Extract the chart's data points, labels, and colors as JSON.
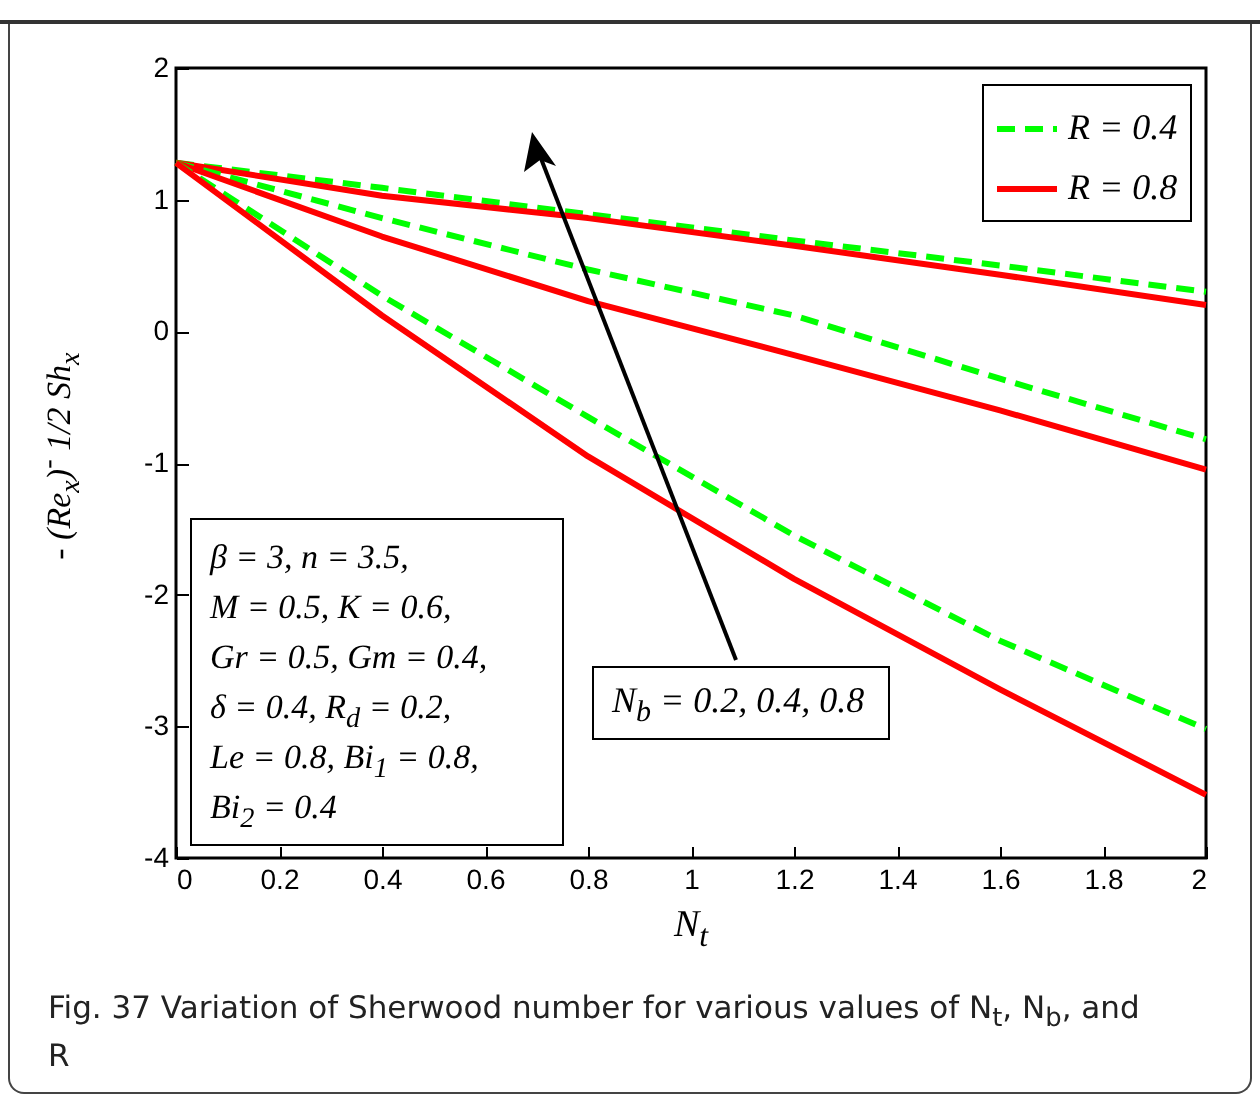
{
  "chart_data": {
    "type": "line",
    "xlabel": "N$_{t}$",
    "ylabel": "- (Re$_{x}$)$^{-}$ 1/2 Sh$_{x}$",
    "x": [
      0,
      0.4,
      0.8,
      1.2,
      1.6,
      2
    ],
    "xlim": [
      0,
      2
    ],
    "xticks": [
      0,
      0.2,
      0.4,
      0.6,
      0.8,
      1,
      1.2,
      1.4,
      1.6,
      1.8,
      2
    ],
    "ylim": [
      -4,
      2
    ],
    "yticks": [
      -4,
      -3,
      -2,
      -1,
      0,
      1,
      2
    ],
    "grid": false,
    "legend": "top right",
    "marker": "none",
    "series": [
      {
        "name": "R = 0.4",
        "color": "#00ff00",
        "line_style": "dashed",
        "values": [
          1.28,
          1.09,
          0.89,
          0.69,
          0.5,
          0.3
        ]
      },
      {
        "name": "R = 0.8",
        "color": "#ff0000",
        "line_style": "solid",
        "values": [
          1.28,
          1.03,
          0.86,
          0.65,
          0.43,
          0.2
        ]
      },
      {
        "color": "#00ff00",
        "line_style": "dashed",
        "values": [
          1.28,
          0.86,
          0.47,
          0.12,
          -0.36,
          -0.82
        ]
      },
      {
        "color": "#ff0000",
        "line_style": "solid",
        "values": [
          1.28,
          0.72,
          0.23,
          -0.18,
          -0.6,
          -1.05
        ]
      },
      {
        "color": "#00ff00",
        "line_style": "dashed",
        "values": [
          1.28,
          0.27,
          -0.65,
          -1.55,
          -2.35,
          -3.02
        ]
      },
      {
        "color": "#ff0000",
        "line_style": "solid",
        "values": [
          1.28,
          0.12,
          -0.95,
          -1.88,
          -2.72,
          -3.52
        ]
      }
    ],
    "annotations": [
      "β = 3, n = 3.5,\nM = 0.5, K = 0.6,\nGr = 0.5, Gm = 0.4,\nδ = 0.4, R$_{d}$ = 0.2,\nLe = 0.8, Bi$_{1}$ = 0.8,\nBi$_{2}$ = 0.4",
      "N$_{b}$ = 0.2, 0.4, 0.8",
      "Fig. 37 Variation of Sherwood number for various values of N$_{t}$, N$_{b}$, and R"
    ]
  }
}
